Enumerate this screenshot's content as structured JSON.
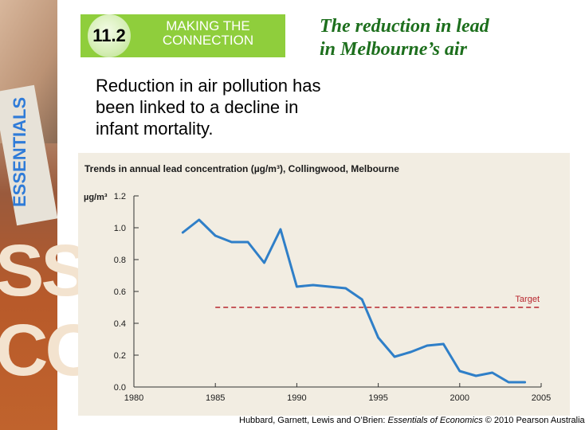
{
  "header": {
    "badge_number": "11.2",
    "badge_label": "MAKING THE\nCONNECTION",
    "title": "The reduction in lead\nin Melbourne’s air",
    "accent_color": "#8fce3c",
    "title_color": "#1d6f1d"
  },
  "body": {
    "text": "Reduction in air pollution has\nbeen linked to a decline in\ninfant mortality."
  },
  "chart_data": {
    "type": "line",
    "title": "Trends in annual lead concentration (µg/m³), Collingwood, Melbourne",
    "ylabel": "µg/m³",
    "xlabel": "",
    "xlim": [
      1980,
      2005
    ],
    "ylim": [
      0.0,
      1.2
    ],
    "x_ticks": [
      1980,
      1985,
      1990,
      1995,
      2000,
      2005
    ],
    "y_ticks": [
      0.0,
      0.2,
      0.4,
      0.6,
      0.8,
      1.0,
      1.2
    ],
    "grid": false,
    "series": [
      {
        "color": "#2f7fc8",
        "x": [
          1983,
          1984,
          1985,
          1986,
          1987,
          1988,
          1989,
          1990,
          1991,
          1992,
          1993,
          1994,
          1995,
          1996,
          1997,
          1998,
          1999,
          2000,
          2001,
          2002,
          2003,
          2004
        ],
        "y": [
          0.97,
          1.05,
          0.95,
          0.91,
          0.91,
          0.78,
          0.99,
          0.63,
          0.64,
          0.63,
          0.62,
          0.55,
          0.31,
          0.19,
          0.22,
          0.26,
          0.27,
          0.1,
          0.07,
          0.09,
          0.03,
          0.03
        ]
      }
    ],
    "target": {
      "label": "Target",
      "value": 0.5,
      "color": "#b8262e"
    }
  },
  "credit": {
    "prefix": "Hubbard, Garnett, Lewis and O’Brien: ",
    "book": "Essentials of Economics",
    "suffix": " © 2010 Pearson Australia"
  }
}
